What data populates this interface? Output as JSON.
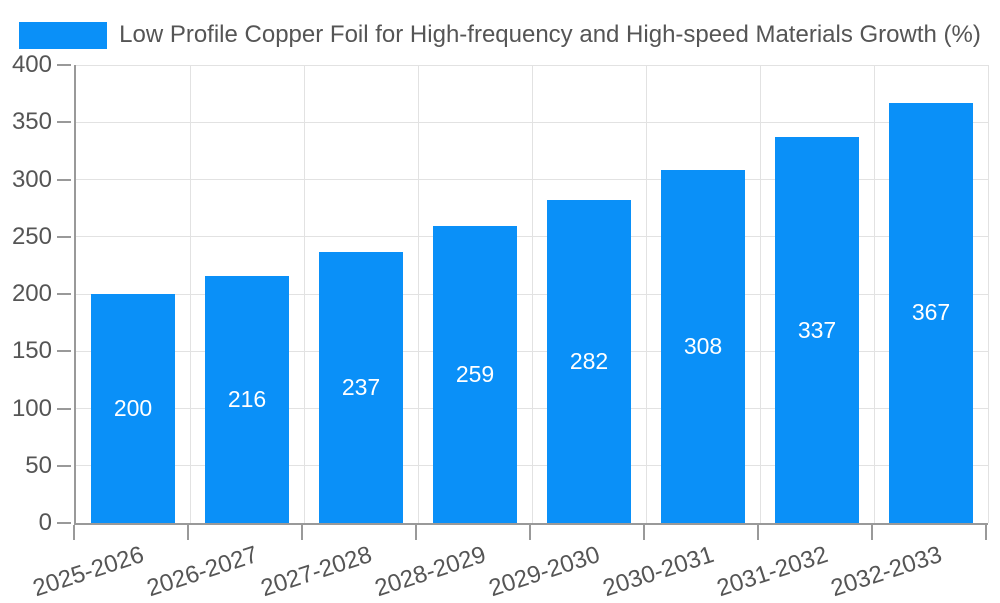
{
  "legend": {
    "items": [
      {
        "label": "Low Profile Copper Foil for High-frequency and High-speed Materials Growth (%)",
        "color": "#0a90f8"
      }
    ],
    "position": "top-center"
  },
  "chart_data": {
    "type": "bar",
    "title": "Low Profile Copper Foil for High-frequency and High-speed Materials Growth (%)",
    "categories": [
      "2025-2026",
      "2026-2027",
      "2027-2028",
      "2028-2029",
      "2029-2030",
      "2030-2031",
      "2031-2032",
      "2032-2033"
    ],
    "values": [
      200,
      216,
      237,
      259,
      282,
      308,
      337,
      367
    ],
    "xlabel": "",
    "ylabel": "",
    "ylim": [
      0,
      400
    ],
    "yticks": [
      0,
      50,
      100,
      150,
      200,
      250,
      300,
      350,
      400
    ],
    "grid": true,
    "legend_position": "top",
    "bar_color": "#0a90f8",
    "bar_label_color": "#ffffff",
    "x_tick_rotation_deg": -18
  },
  "style": {
    "axis_color": "#999999",
    "grid_color": "#e2e2e2",
    "tick_label_color": "#555555",
    "background": "#ffffff"
  }
}
